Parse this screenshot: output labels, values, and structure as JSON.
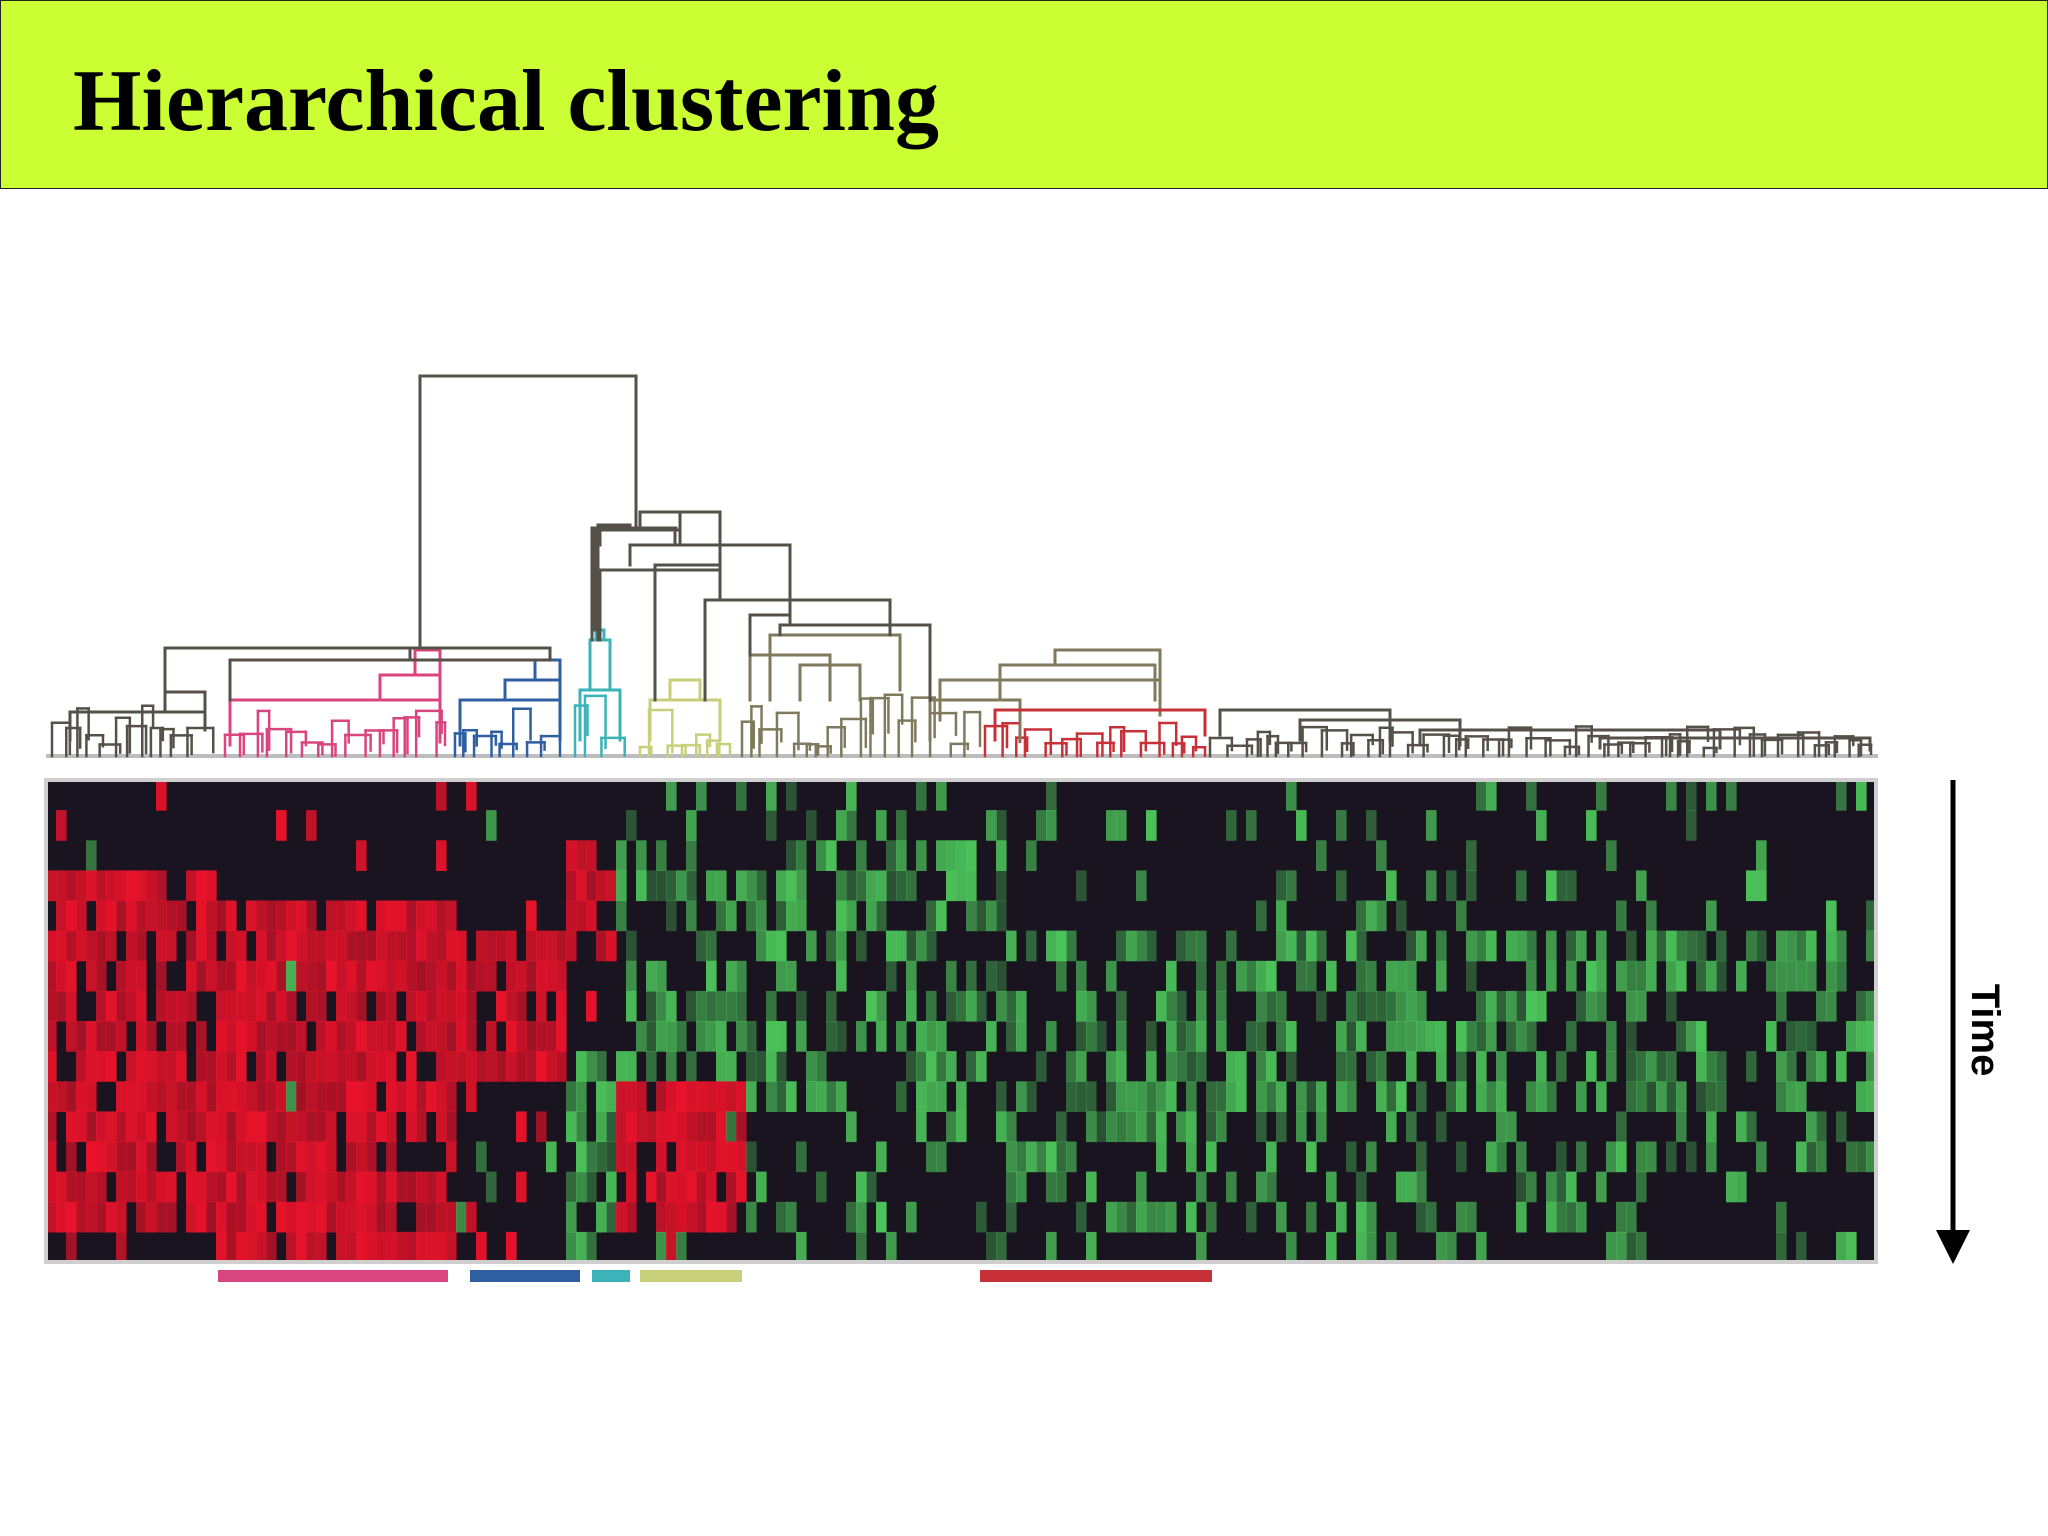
{
  "slide": {
    "title": "Hierarchical clustering"
  },
  "figure": {
    "axis_label": "Time",
    "cluster_colors": {
      "black": "#555048",
      "pink": "#d9467f",
      "blue": "#2f5fa0",
      "cyan": "#3bb3b8",
      "yellow": "#c8cf7a",
      "red": "#c83038",
      "olive": "#7f7a5e"
    },
    "heatmap_colors": {
      "up": "#e8132a",
      "down": "#4cc25a",
      "neutral": "#1a1320"
    }
  }
}
